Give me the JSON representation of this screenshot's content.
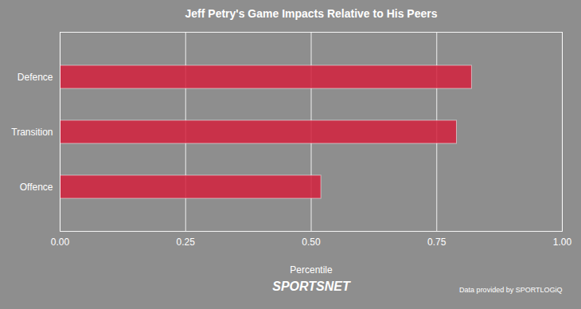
{
  "chart_data": {
    "type": "bar",
    "orientation": "horizontal",
    "title": "Jeff Petry's Game Impacts Relative to His Peers",
    "x_label": "Percentile",
    "categories": [
      "Defence",
      "Transition",
      "Offence"
    ],
    "values": [
      0.82,
      0.79,
      0.52
    ],
    "color": "#d4213d",
    "xlim": [
      0,
      1
    ],
    "xticks": [
      {
        "value": 0,
        "label": "0.00"
      },
      {
        "value": 0.25,
        "label": "0.25"
      },
      {
        "value": 0.5,
        "label": "0.50"
      },
      {
        "value": 0.75,
        "label": "0.75"
      },
      {
        "value": 1,
        "label": "1.00"
      }
    ],
    "grid": true,
    "annotations": [
      "SPORTSNET",
      "Data provided by SPORTLOGiQ"
    ]
  }
}
